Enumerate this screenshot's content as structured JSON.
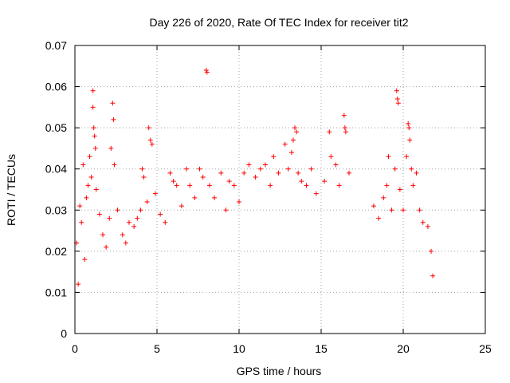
{
  "chart_data": {
    "type": "scatter",
    "title": "Day 226 of 2020, Rate Of TEC Index for receiver tit2",
    "xlabel": "GPS time / hours",
    "ylabel": "ROTI / TECUs",
    "xlim": [
      0,
      25
    ],
    "ylim": [
      0,
      0.07
    ],
    "x_ticks": [
      "0",
      "5",
      "10",
      "15",
      "20",
      "25"
    ],
    "y_ticks": [
      "0",
      "0.01",
      "0.02",
      "0.03",
      "0.04",
      "0.05",
      "0.06",
      "0.07"
    ],
    "grid": true,
    "marker": "+",
    "color": "#ff0000",
    "series": [
      {
        "points": [
          [
            0.1,
            0.022
          ],
          [
            0.2,
            0.012
          ],
          [
            0.3,
            0.031
          ],
          [
            0.4,
            0.027
          ],
          [
            0.5,
            0.041
          ],
          [
            0.6,
            0.018
          ],
          [
            0.7,
            0.033
          ],
          [
            0.8,
            0.036
          ],
          [
            0.9,
            0.043
          ],
          [
            1.0,
            0.038
          ],
          [
            1.1,
            0.059
          ],
          [
            1.1,
            0.055
          ],
          [
            1.15,
            0.05
          ],
          [
            1.2,
            0.048
          ],
          [
            1.25,
            0.045
          ],
          [
            1.3,
            0.035
          ],
          [
            1.5,
            0.029
          ],
          [
            1.7,
            0.024
          ],
          [
            1.9,
            0.021
          ],
          [
            2.1,
            0.028
          ],
          [
            2.2,
            0.045
          ],
          [
            2.3,
            0.056
          ],
          [
            2.35,
            0.052
          ],
          [
            2.4,
            0.041
          ],
          [
            2.6,
            0.03
          ],
          [
            2.9,
            0.024
          ],
          [
            3.1,
            0.022
          ],
          [
            3.3,
            0.027
          ],
          [
            3.6,
            0.026
          ],
          [
            3.8,
            0.028
          ],
          [
            4.0,
            0.03
          ],
          [
            4.1,
            0.04
          ],
          [
            4.2,
            0.038
          ],
          [
            4.4,
            0.032
          ],
          [
            4.5,
            0.05
          ],
          [
            4.6,
            0.047
          ],
          [
            4.7,
            0.046
          ],
          [
            4.9,
            0.034
          ],
          [
            5.2,
            0.029
          ],
          [
            5.5,
            0.027
          ],
          [
            5.8,
            0.039
          ],
          [
            6.0,
            0.037
          ],
          [
            6.2,
            0.036
          ],
          [
            6.5,
            0.031
          ],
          [
            6.8,
            0.04
          ],
          [
            7.0,
            0.036
          ],
          [
            7.3,
            0.033
          ],
          [
            7.6,
            0.04
          ],
          [
            7.8,
            0.038
          ],
          [
            8.0,
            0.064
          ],
          [
            8.05,
            0.0635
          ],
          [
            8.2,
            0.036
          ],
          [
            8.5,
            0.033
          ],
          [
            8.9,
            0.039
          ],
          [
            9.2,
            0.03
          ],
          [
            9.4,
            0.037
          ],
          [
            9.7,
            0.036
          ],
          [
            10.0,
            0.032
          ],
          [
            10.3,
            0.039
          ],
          [
            10.6,
            0.041
          ],
          [
            11.0,
            0.038
          ],
          [
            11.3,
            0.04
          ],
          [
            11.6,
            0.041
          ],
          [
            11.9,
            0.036
          ],
          [
            12.1,
            0.043
          ],
          [
            12.4,
            0.039
          ],
          [
            12.8,
            0.046
          ],
          [
            13.0,
            0.04
          ],
          [
            13.2,
            0.044
          ],
          [
            13.3,
            0.047
          ],
          [
            13.4,
            0.05
          ],
          [
            13.5,
            0.049
          ],
          [
            13.6,
            0.039
          ],
          [
            13.8,
            0.037
          ],
          [
            14.1,
            0.036
          ],
          [
            14.4,
            0.04
          ],
          [
            14.7,
            0.034
          ],
          [
            15.2,
            0.037
          ],
          [
            15.5,
            0.049
          ],
          [
            15.6,
            0.043
          ],
          [
            15.9,
            0.041
          ],
          [
            16.1,
            0.036
          ],
          [
            16.4,
            0.053
          ],
          [
            16.45,
            0.05
          ],
          [
            16.5,
            0.049
          ],
          [
            16.7,
            0.039
          ],
          [
            18.2,
            0.031
          ],
          [
            18.5,
            0.028
          ],
          [
            18.8,
            0.033
          ],
          [
            19.0,
            0.036
          ],
          [
            19.1,
            0.043
          ],
          [
            19.3,
            0.03
          ],
          [
            19.5,
            0.04
          ],
          [
            19.6,
            0.059
          ],
          [
            19.65,
            0.057
          ],
          [
            19.7,
            0.056
          ],
          [
            19.8,
            0.035
          ],
          [
            20.0,
            0.03
          ],
          [
            20.2,
            0.043
          ],
          [
            20.3,
            0.051
          ],
          [
            20.35,
            0.05
          ],
          [
            20.4,
            0.047
          ],
          [
            20.5,
            0.04
          ],
          [
            20.6,
            0.036
          ],
          [
            20.8,
            0.039
          ],
          [
            21.0,
            0.03
          ],
          [
            21.2,
            0.027
          ],
          [
            21.5,
            0.026
          ],
          [
            21.7,
            0.02
          ],
          [
            21.8,
            0.014
          ]
        ]
      }
    ]
  }
}
